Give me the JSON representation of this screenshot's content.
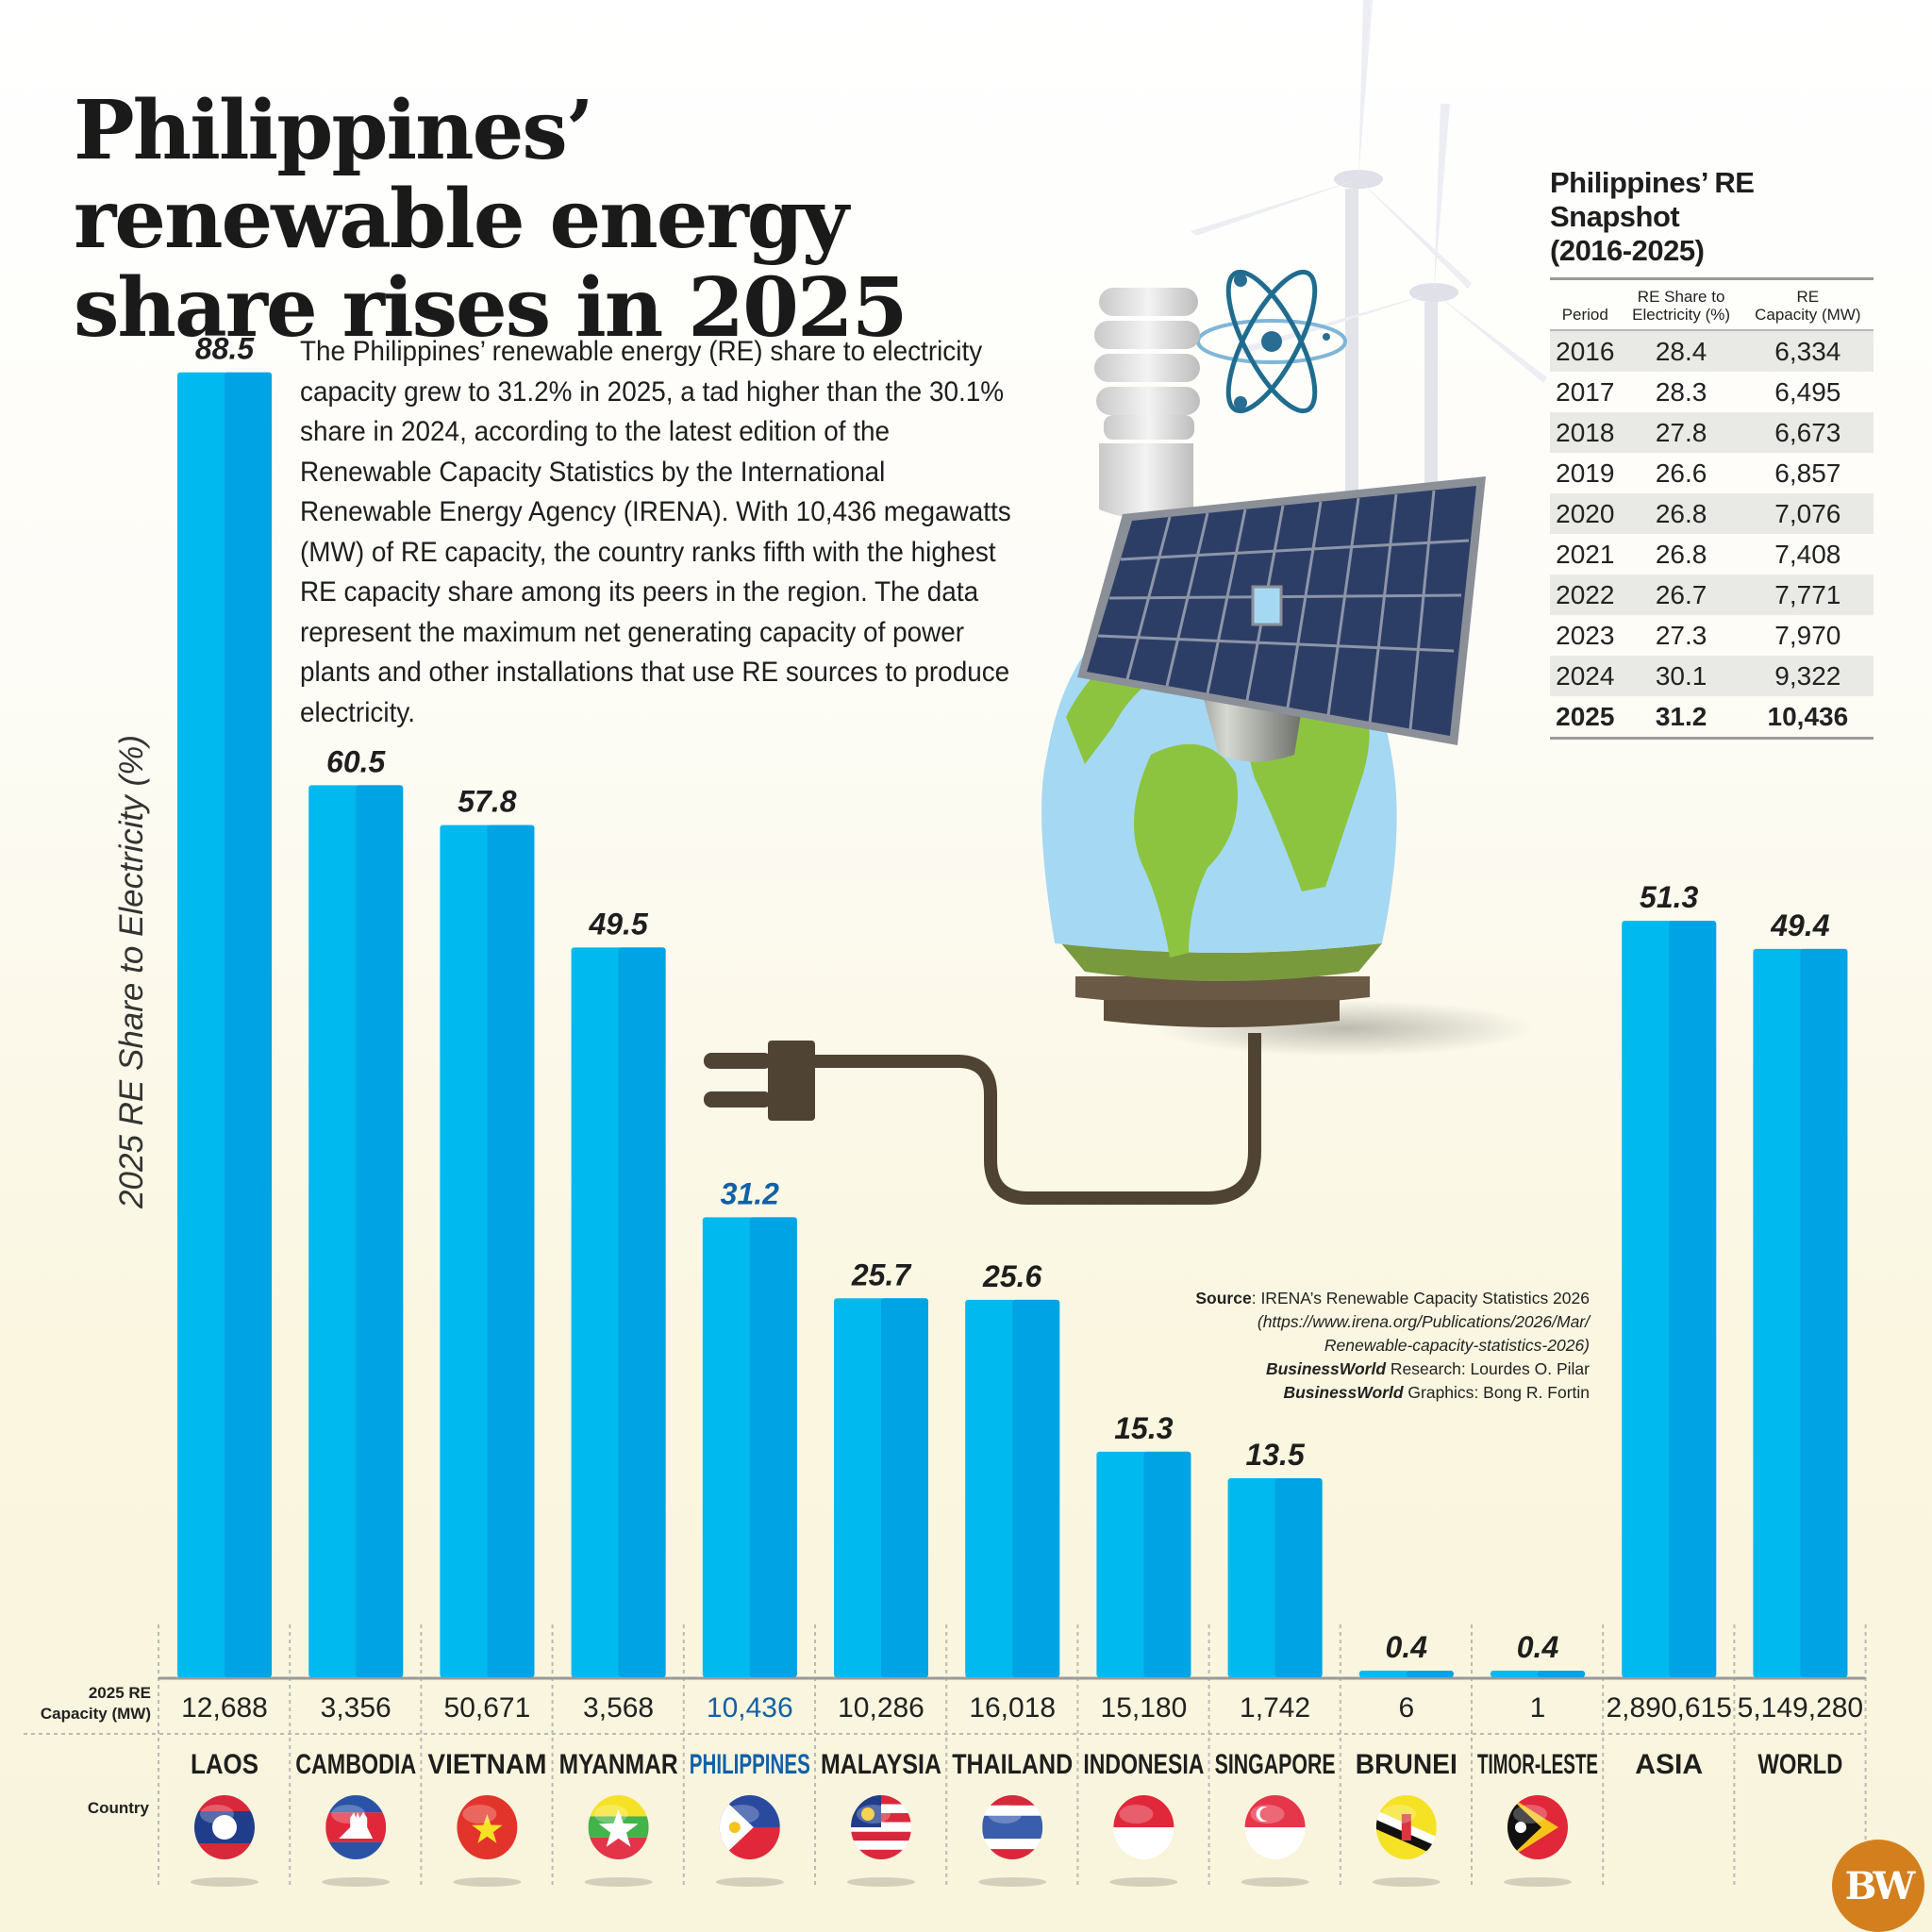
{
  "title": "Philippines’ renewable energy share rises in 2025",
  "intro": "The Philippines’ renewable energy (RE) share to electricity capacity grew to 31.2% in 2025, a tad higher than the 30.1% share in 2024, according to the latest edition of the Renewable Capacity Statistics by the International Renewable Energy Agency (IRENA). With 10,436 megawatts (MW) of RE capacity, the country ranks fifth with the highest RE capacity share among its peers in the region. The data represent the maximum net generating capacity of power plants and other installations that use RE sources to produce electricity.",
  "colors": {
    "bar_light": "#00b9ef",
    "bar_dark": "#00a3e4",
    "highlight_text": "#1160a8",
    "logo": "#d47f1d"
  },
  "chart_data": {
    "type": "bar",
    "title": "Philippines’ renewable energy share rises in 2025",
    "ylabel": "2025 RE Share to Electricity (%)",
    "xlabel": "Country",
    "ylim": [
      0,
      100
    ],
    "grid": false,
    "highlight": "PHILIPPINES",
    "categories": [
      "LAOS",
      "CAMBODIA",
      "VIETNAM",
      "MYANMAR",
      "PHILIPPINES",
      "MALAYSIA",
      "THAILAND",
      "INDONESIA",
      "SINGAPORE",
      "BRUNEI",
      "TIMOR-LESTE",
      "ASIA",
      "WORLD"
    ],
    "values": [
      88.5,
      60.5,
      57.8,
      49.5,
      31.2,
      25.7,
      25.6,
      15.3,
      13.5,
      0.4,
      0.4,
      51.3,
      49.4
    ],
    "value_labels": [
      "88.5",
      "60.5",
      "57.8",
      "49.5",
      "31.2",
      "25.7",
      "25.6",
      "15.3",
      "13.5",
      "0.4",
      "0.4",
      "51.3",
      "49.4"
    ],
    "capacity_row_label_line1": "2025 RE",
    "capacity_row_label_line2": "Capacity (MW)",
    "capacity_mw": [
      "12,688",
      "3,356",
      "50,671",
      "3,568",
      "10,436",
      "10,286",
      "16,018",
      "15,180",
      "1,742",
      "6",
      "1",
      "2,890,615",
      "5,149,280"
    ],
    "country_row_label": "Country",
    "flags": [
      "laos-flag",
      "cambodia-flag",
      "vietnam-flag",
      "myanmar-flag",
      "philippines-flag",
      "malaysia-flag",
      "thailand-flag",
      "indonesia-flag",
      "singapore-flag",
      "brunei-flag",
      "timor-leste-flag",
      "",
      ""
    ]
  },
  "snapshot": {
    "title_line1": "Philippines’ RE Snapshot",
    "title_line2": "(2016-2025)",
    "headers": [
      "Period",
      "RE Share to Electricity (%)",
      "RE Capacity (MW)"
    ],
    "header_lines": [
      [
        "Period"
      ],
      [
        "RE Share to",
        "Electricity (%)"
      ],
      [
        "RE",
        "Capacity (MW)"
      ]
    ],
    "rows": [
      [
        "2016",
        "28.4",
        "6,334"
      ],
      [
        "2017",
        "28.3",
        "6,495"
      ],
      [
        "2018",
        "27.8",
        "6,673"
      ],
      [
        "2019",
        "26.6",
        "6,857"
      ],
      [
        "2020",
        "26.8",
        "7,076"
      ],
      [
        "2021",
        "26.8",
        "7,408"
      ],
      [
        "2022",
        "26.7",
        "7,771"
      ],
      [
        "2023",
        "27.3",
        "7,970"
      ],
      [
        "2024",
        "30.1",
        "9,322"
      ],
      [
        "2025",
        "31.2",
        "10,436"
      ]
    ]
  },
  "credits": {
    "source_label": "Source",
    "source_text": "IRENA’s Renewable Capacity Statistics 2026",
    "source_url_1": "(https://www.irena.org/Publications/2026/Mar/",
    "source_url_2": "Renewable-capacity-statistics-2026)",
    "research_brand": "BusinessWorld",
    "research_label": "Research",
    "research_name": "Lourdes O. Pilar",
    "graphics_brand": "BusinessWorld",
    "graphics_label": "Graphics",
    "graphics_name": "Bong R. Fortin"
  },
  "logo": {
    "text": "BW"
  }
}
